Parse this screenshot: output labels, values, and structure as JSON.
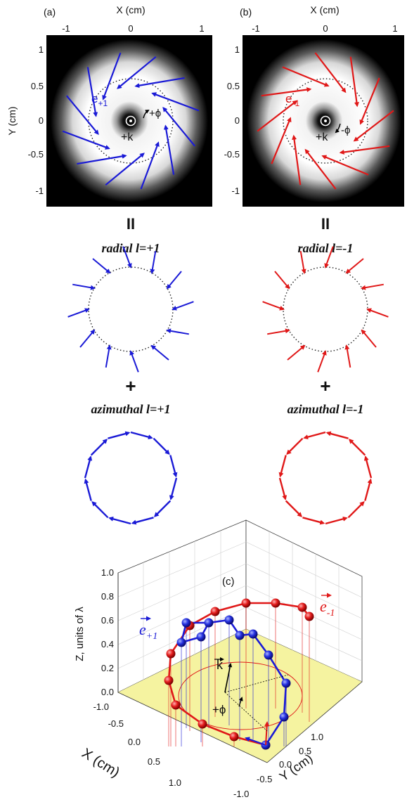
{
  "panel_a": {
    "tag": "(a)",
    "x_title": "X (cm)",
    "y_title": "Y (cm)",
    "x_ticks": [
      "-1",
      "0",
      "1"
    ],
    "y_ticks": [
      "1",
      "0.5",
      "0",
      "-0.5",
      "-1"
    ],
    "field_label": "e",
    "field_sub": "+1",
    "k_label": "+k",
    "phi_label": "+ϕ",
    "equals": "II",
    "radial_caption": "radial l=+1",
    "plus": "+",
    "azimuthal_caption": "azimuthal l=+1",
    "color": "#1a1ad6"
  },
  "panel_b": {
    "tag": "(b)",
    "x_title": "X (cm)",
    "y_ticks": [
      "1",
      "0.5",
      "0",
      "-0.5",
      "-1"
    ],
    "x_ticks": [
      "-1",
      "0",
      "1"
    ],
    "field_label": "e",
    "field_sub": "-1",
    "k_label": "+k",
    "phi_label": "-ϕ",
    "equals": "II",
    "radial_caption": "radial l=-1",
    "plus": "+",
    "azimuthal_caption": "azimuthal l=-1",
    "color": "#e01818"
  },
  "panel_c": {
    "tag": "(c)",
    "z_title": "Z, units of λ",
    "z_ticks": [
      "1.0",
      "0.8",
      "0.6",
      "0.4",
      "0.2",
      "0.0"
    ],
    "x_title": "X (cm)",
    "x_ticks": [
      "-1.0",
      "-0.5",
      "0.0",
      "0.5",
      "1.0"
    ],
    "y_title": "Y (cm)",
    "y_ticks": [
      "1.0",
      "0.5",
      "0.0",
      "-0.5",
      "-1.0"
    ],
    "label_plus": "e",
    "label_plus_sub": "+1",
    "label_minus": "e",
    "label_minus_sub": "-1",
    "k_label": "k",
    "phi_label": "+ϕ",
    "blue": "#1a1ad6",
    "red": "#e01818",
    "floor_color": "#f5f3a0"
  }
}
